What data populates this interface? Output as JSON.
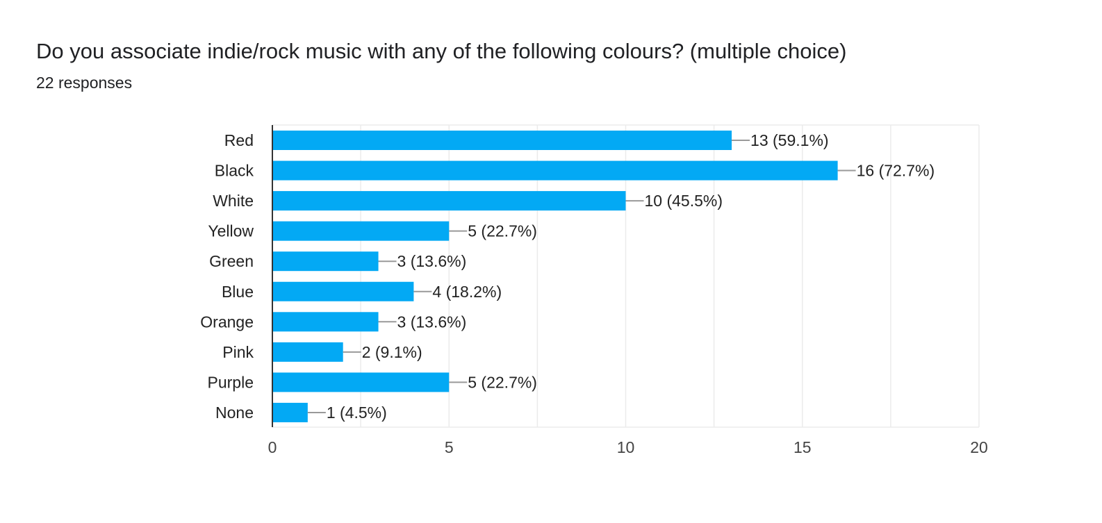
{
  "question": {
    "title": "Do you associate indie/rock music with any of the following colours? (multiple choice)",
    "responses": "22 responses"
  },
  "colors": {
    "bar": "#03a9f4",
    "grid": "#ebebeb",
    "axis": "#333333",
    "leader": "#999999"
  },
  "chart_data": {
    "type": "bar",
    "orientation": "horizontal",
    "categories": [
      "Red",
      "Black",
      "White",
      "Yellow",
      "Green",
      "Blue",
      "Orange",
      "Pink",
      "Purple",
      "None"
    ],
    "values": [
      13,
      16,
      10,
      5,
      3,
      4,
      3,
      2,
      5,
      1
    ],
    "data_labels": [
      "13 (59.1%)",
      "16 (72.7%)",
      "10 (45.5%)",
      "5 (22.7%)",
      "3 (13.6%)",
      "4 (18.2%)",
      "3 (13.6%)",
      "2 (9.1%)",
      "5 (22.7%)",
      "1 (4.5%)"
    ],
    "xlim": [
      0,
      20
    ],
    "xticks": [
      "0",
      "5",
      "10",
      "15",
      "20"
    ],
    "grid": true
  }
}
